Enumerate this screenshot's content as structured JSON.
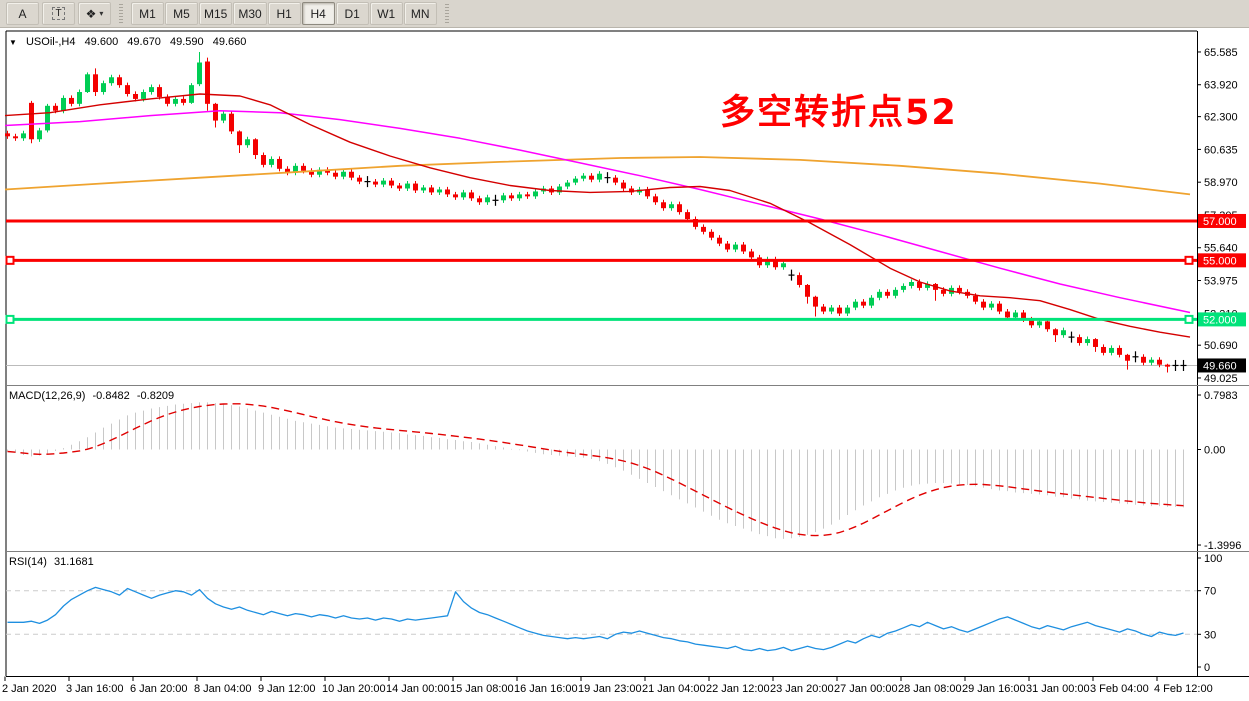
{
  "toolbar": {
    "tools": [
      {
        "id": "text-label-tool",
        "label": "A"
      },
      {
        "id": "text-box-tool",
        "label": "T"
      },
      {
        "id": "arrows-tool",
        "icon": "❖",
        "caret": "▾"
      }
    ],
    "timeframes": [
      "M1",
      "M5",
      "M15",
      "M30",
      "H1",
      "H4",
      "D1",
      "W1",
      "MN"
    ],
    "active_timeframe": "H4"
  },
  "chart_header": {
    "collapse_icon": "▼",
    "symbol_period": "USOil-,H4",
    "open": "49.600",
    "high": "49.670",
    "low": "49.590",
    "close": "49.660"
  },
  "annotation": {
    "text": "多空转折点52",
    "color": "#FF0000"
  },
  "indicators": {
    "macd": {
      "name": "MACD(12,26,9)",
      "value": "-0.8482",
      "signal": "-0.8209"
    },
    "rsi": {
      "name": "RSI(14)",
      "value": "31.1681"
    }
  },
  "price_axis_ticks": [
    "65.585",
    "63.920",
    "62.300",
    "60.635",
    "58.970",
    "57.305",
    "55.640",
    "53.975",
    "52.310",
    "50.690",
    "49.025"
  ],
  "macd_axis": [
    {
      "v": 0.7983,
      "label": "0.7983"
    },
    {
      "v": 0,
      "label": "0.00"
    },
    {
      "v": -1.3996,
      "label": "-1.3996"
    }
  ],
  "rsi_axis": [
    {
      "v": 100,
      "label": "100"
    },
    {
      "v": 70,
      "label": "70",
      "dashed": true
    },
    {
      "v": 30,
      "label": "30",
      "dashed": true
    },
    {
      "v": 0,
      "label": "0"
    }
  ],
  "time_axis": [
    "2 Jan 2020",
    "3 Jan 16:00",
    "6 Jan 20:00",
    "8 Jan 04:00",
    "9 Jan 12:00",
    "10 Jan 20:00",
    "14 Jan 00:00",
    "15 Jan 08:00",
    "16 Jan 16:00",
    "19 Jan 23:00",
    "21 Jan 04:00",
    "22 Jan 12:00",
    "23 Jan 20:00",
    "27 Jan 00:00",
    "28 Jan 08:00",
    "29 Jan 16:00",
    "31 Jan 00:00",
    "3 Feb 04:00",
    "4 Feb 12:00"
  ],
  "colors": {
    "bull": "#00CD54",
    "bear": "#F40000",
    "doji": "#000000",
    "ma_fast": "#D40000",
    "ma_mid": "#FF00FF",
    "ma_slow": "#EFA32F",
    "macd_bar": "#C8C8C8",
    "macd_signal": "#E00000",
    "rsi_line": "#1E8FE0",
    "level_dash": "#CCCCCC",
    "hline_red": "#FB0000",
    "hline_green": "#00E37A",
    "current_line": "#BBBBBB",
    "current_bg": "#000000",
    "border": "#000000",
    "divider": "#808080"
  },
  "chart_data": {
    "type": "candlestick+indicators",
    "symbol": "USOil-",
    "period": "H4",
    "ohlc_display": {
      "open": 49.6,
      "high": 49.67,
      "low": 49.59,
      "close": 49.66
    },
    "price_range_labels": [
      65.585,
      49.025
    ],
    "closes": [
      61.3,
      61.2,
      61.45,
      61.15,
      61.6,
      62.85,
      62.6,
      63.25,
      62.95,
      63.55,
      64.45,
      63.55,
      64.0,
      64.3,
      63.9,
      63.45,
      63.2,
      63.55,
      63.8,
      63.3,
      62.95,
      63.2,
      63.0,
      63.9,
      65.05,
      62.95,
      62.1,
      62.45,
      61.55,
      60.85,
      61.15,
      60.35,
      59.85,
      60.15,
      59.65,
      59.45,
      59.8,
      59.55,
      59.35,
      59.6,
      59.45,
      59.25,
      59.5,
      59.2,
      59.0,
      59.0,
      58.85,
      59.05,
      58.8,
      58.65,
      58.9,
      58.55,
      58.7,
      58.45,
      58.6,
      58.35,
      58.2,
      58.45,
      58.15,
      57.95,
      58.2,
      58.05,
      58.3,
      58.15,
      58.35,
      58.25,
      58.5,
      58.65,
      58.45,
      58.75,
      58.95,
      59.15,
      59.3,
      59.1,
      59.4,
      59.2,
      58.95,
      58.65,
      58.45,
      58.6,
      58.25,
      57.95,
      57.65,
      57.85,
      57.45,
      57.1,
      56.7,
      56.45,
      56.15,
      55.85,
      55.55,
      55.8,
      55.45,
      55.15,
      54.75,
      55.05,
      54.65,
      54.85,
      54.25,
      53.75,
      53.15,
      52.65,
      52.4,
      52.6,
      52.3,
      52.6,
      52.9,
      52.7,
      53.1,
      53.4,
      53.2,
      53.5,
      53.7,
      53.9,
      53.6,
      53.8,
      53.5,
      53.3,
      53.6,
      53.4,
      53.2,
      52.9,
      52.6,
      52.8,
      52.4,
      52.1,
      52.35,
      52.0,
      51.7,
      51.9,
      51.5,
      51.2,
      51.45,
      51.1,
      50.8,
      51.0,
      50.6,
      50.3,
      50.55,
      50.2,
      49.9,
      50.1,
      49.8,
      49.95,
      49.7,
      49.6,
      49.66,
      49.66
    ],
    "special_bars": {
      "3": [
        63.0,
        63.1,
        60.95,
        61.15
      ],
      "5": [
        61.6,
        62.95,
        61.5,
        62.85
      ],
      "10": [
        63.55,
        64.55,
        63.5,
        64.45
      ],
      "11": [
        64.45,
        64.75,
        63.35,
        63.55
      ],
      "23": [
        63.0,
        64.0,
        62.95,
        63.9
      ],
      "24": [
        63.95,
        65.585,
        63.85,
        65.05
      ],
      "25": [
        65.1,
        65.3,
        62.6,
        62.95
      ],
      "26": [
        62.95,
        63.0,
        61.75,
        62.1
      ],
      "29": [
        61.55,
        61.6,
        60.45,
        60.85
      ],
      "31": [
        61.15,
        61.2,
        60.15,
        60.35
      ],
      "100": [
        53.75,
        53.8,
        52.8,
        53.15
      ],
      "101": [
        53.15,
        53.2,
        52.15,
        52.65
      ],
      "116": [
        53.8,
        53.85,
        52.95,
        53.5
      ],
      "131": [
        51.5,
        51.55,
        50.85,
        51.2
      ],
      "136": [
        51.0,
        51.05,
        50.35,
        50.6
      ],
      "140": [
        50.2,
        50.25,
        49.45,
        49.9
      ],
      "145": [
        49.7,
        49.75,
        49.3,
        49.6
      ]
    },
    "doji_bars": [
      45,
      61,
      75,
      98,
      133,
      141,
      146,
      147
    ],
    "h_lines": [
      {
        "price": 57.0,
        "label": "57.000",
        "color": "#FB0000",
        "handles": false
      },
      {
        "price": 55.0,
        "label": "55.000",
        "color": "#FB0000",
        "handles": true
      },
      {
        "price": 52.0,
        "label": "52.000",
        "color": "#00E37A",
        "handles": true
      }
    ],
    "current_price": {
      "price": 49.66,
      "label": "49.660"
    },
    "ma_fast": [
      [
        5,
        62.35
      ],
      [
        50,
        62.5
      ],
      [
        100,
        62.9
      ],
      [
        150,
        63.2
      ],
      [
        200,
        63.45
      ],
      [
        240,
        63.35
      ],
      [
        270,
        62.9
      ],
      [
        310,
        61.9
      ],
      [
        350,
        61.0
      ],
      [
        390,
        60.3
      ],
      [
        430,
        59.7
      ],
      [
        470,
        59.2
      ],
      [
        510,
        58.8
      ],
      [
        550,
        58.55
      ],
      [
        590,
        58.45
      ],
      [
        630,
        58.5
      ],
      [
        670,
        58.7
      ],
      [
        700,
        58.75
      ],
      [
        730,
        58.55
      ],
      [
        770,
        57.9
      ],
      [
        810,
        56.9
      ],
      [
        850,
        55.8
      ],
      [
        890,
        54.6
      ],
      [
        920,
        53.9
      ],
      [
        950,
        53.45
      ],
      [
        980,
        53.2
      ],
      [
        1010,
        53.1
      ],
      [
        1040,
        52.95
      ],
      [
        1070,
        52.5
      ],
      [
        1100,
        52.0
      ],
      [
        1130,
        51.65
      ],
      [
        1160,
        51.35
      ],
      [
        1190,
        51.1
      ]
    ],
    "ma_mid": [
      [
        5,
        61.85
      ],
      [
        80,
        62.05
      ],
      [
        150,
        62.35
      ],
      [
        220,
        62.6
      ],
      [
        280,
        62.5
      ],
      [
        340,
        62.15
      ],
      [
        400,
        61.7
      ],
      [
        460,
        61.2
      ],
      [
        520,
        60.6
      ],
      [
        580,
        59.95
      ],
      [
        640,
        59.3
      ],
      [
        700,
        58.6
      ],
      [
        760,
        57.85
      ],
      [
        820,
        57.1
      ],
      [
        880,
        56.3
      ],
      [
        940,
        55.45
      ],
      [
        1000,
        54.6
      ],
      [
        1060,
        53.8
      ],
      [
        1120,
        53.1
      ],
      [
        1190,
        52.35
      ]
    ],
    "ma_slow": [
      [
        5,
        58.6
      ],
      [
        100,
        58.9
      ],
      [
        200,
        59.2
      ],
      [
        300,
        59.5
      ],
      [
        400,
        59.8
      ],
      [
        500,
        60.0
      ],
      [
        620,
        60.2
      ],
      [
        700,
        60.25
      ],
      [
        800,
        60.1
      ],
      [
        900,
        59.8
      ],
      [
        1000,
        59.4
      ],
      [
        1100,
        58.9
      ],
      [
        1190,
        58.35
      ]
    ],
    "macd": [
      -0.03,
      -0.05,
      -0.08,
      -0.1,
      -0.09,
      -0.06,
      -0.02,
      0.02,
      0.07,
      0.12,
      0.18,
      0.25,
      0.32,
      0.38,
      0.44,
      0.5,
      0.54,
      0.57,
      0.6,
      0.62,
      0.64,
      0.66,
      0.67,
      0.68,
      0.69,
      0.69,
      0.68,
      0.67,
      0.65,
      0.63,
      0.6,
      0.57,
      0.54,
      0.51,
      0.48,
      0.45,
      0.42,
      0.4,
      0.38,
      0.36,
      0.34,
      0.32,
      0.31,
      0.3,
      0.29,
      0.28,
      0.27,
      0.26,
      0.25,
      0.24,
      0.22,
      0.21,
      0.2,
      0.18,
      0.17,
      0.15,
      0.14,
      0.12,
      0.11,
      0.09,
      0.07,
      0.05,
      0.03,
      0.01,
      -0.01,
      -0.03,
      -0.05,
      -0.07,
      -0.08,
      -0.09,
      -0.1,
      -0.11,
      -0.12,
      -0.14,
      -0.17,
      -0.21,
      -0.26,
      -0.31,
      -0.37,
      -0.43,
      -0.49,
      -0.55,
      -0.61,
      -0.67,
      -0.73,
      -0.79,
      -0.85,
      -0.91,
      -0.97,
      -1.03,
      -1.08,
      -1.12,
      -1.16,
      -1.2,
      -1.24,
      -1.27,
      -1.3,
      -1.31,
      -1.3,
      -1.28,
      -1.25,
      -1.21,
      -1.16,
      -1.1,
      -1.03,
      -0.96,
      -0.89,
      -0.82,
      -0.76,
      -0.7,
      -0.65,
      -0.6,
      -0.56,
      -0.53,
      -0.51,
      -0.5,
      -0.49,
      -0.49,
      -0.5,
      -0.51,
      -0.52,
      -0.54,
      -0.56,
      -0.58,
      -0.6,
      -0.61,
      -0.63,
      -0.64,
      -0.65,
      -0.66,
      -0.67,
      -0.69,
      -0.7,
      -0.72,
      -0.73,
      -0.75,
      -0.76,
      -0.77,
      -0.78,
      -0.79,
      -0.8,
      -0.81,
      -0.82,
      -0.83,
      -0.83,
      -0.84,
      -0.84,
      -0.8482
    ],
    "rsi": [
      41,
      41,
      41,
      42,
      40,
      43,
      48,
      56,
      62,
      66,
      70,
      73,
      71,
      69,
      66,
      72,
      69,
      66,
      63,
      66,
      68,
      70,
      69,
      66,
      71,
      63,
      58,
      55,
      53,
      55,
      52,
      50,
      48,
      51,
      49,
      47,
      49,
      48,
      46,
      48,
      47,
      45,
      47,
      45,
      44,
      45,
      43,
      45,
      44,
      42,
      44,
      43,
      44,
      45,
      46,
      47,
      69,
      60,
      54,
      50,
      48,
      45,
      42,
      39,
      36,
      33,
      31,
      29,
      28,
      27,
      26,
      27,
      26,
      27,
      28,
      26,
      30,
      32,
      31,
      33,
      31,
      29,
      27,
      26,
      24,
      23,
      21,
      20,
      19,
      18,
      17,
      19,
      16,
      15,
      17,
      15,
      16,
      18,
      15,
      17,
      19,
      17,
      16,
      18,
      21,
      24,
      22,
      26,
      29,
      27,
      31,
      33,
      36,
      39,
      37,
      41,
      38,
      35,
      37,
      34,
      32,
      35,
      38,
      41,
      44,
      46,
      43,
      40,
      37,
      35,
      38,
      36,
      34,
      37,
      39,
      41,
      38,
      36,
      34,
      32,
      35,
      33,
      30,
      28,
      32,
      30,
      29,
      31.17
    ]
  }
}
